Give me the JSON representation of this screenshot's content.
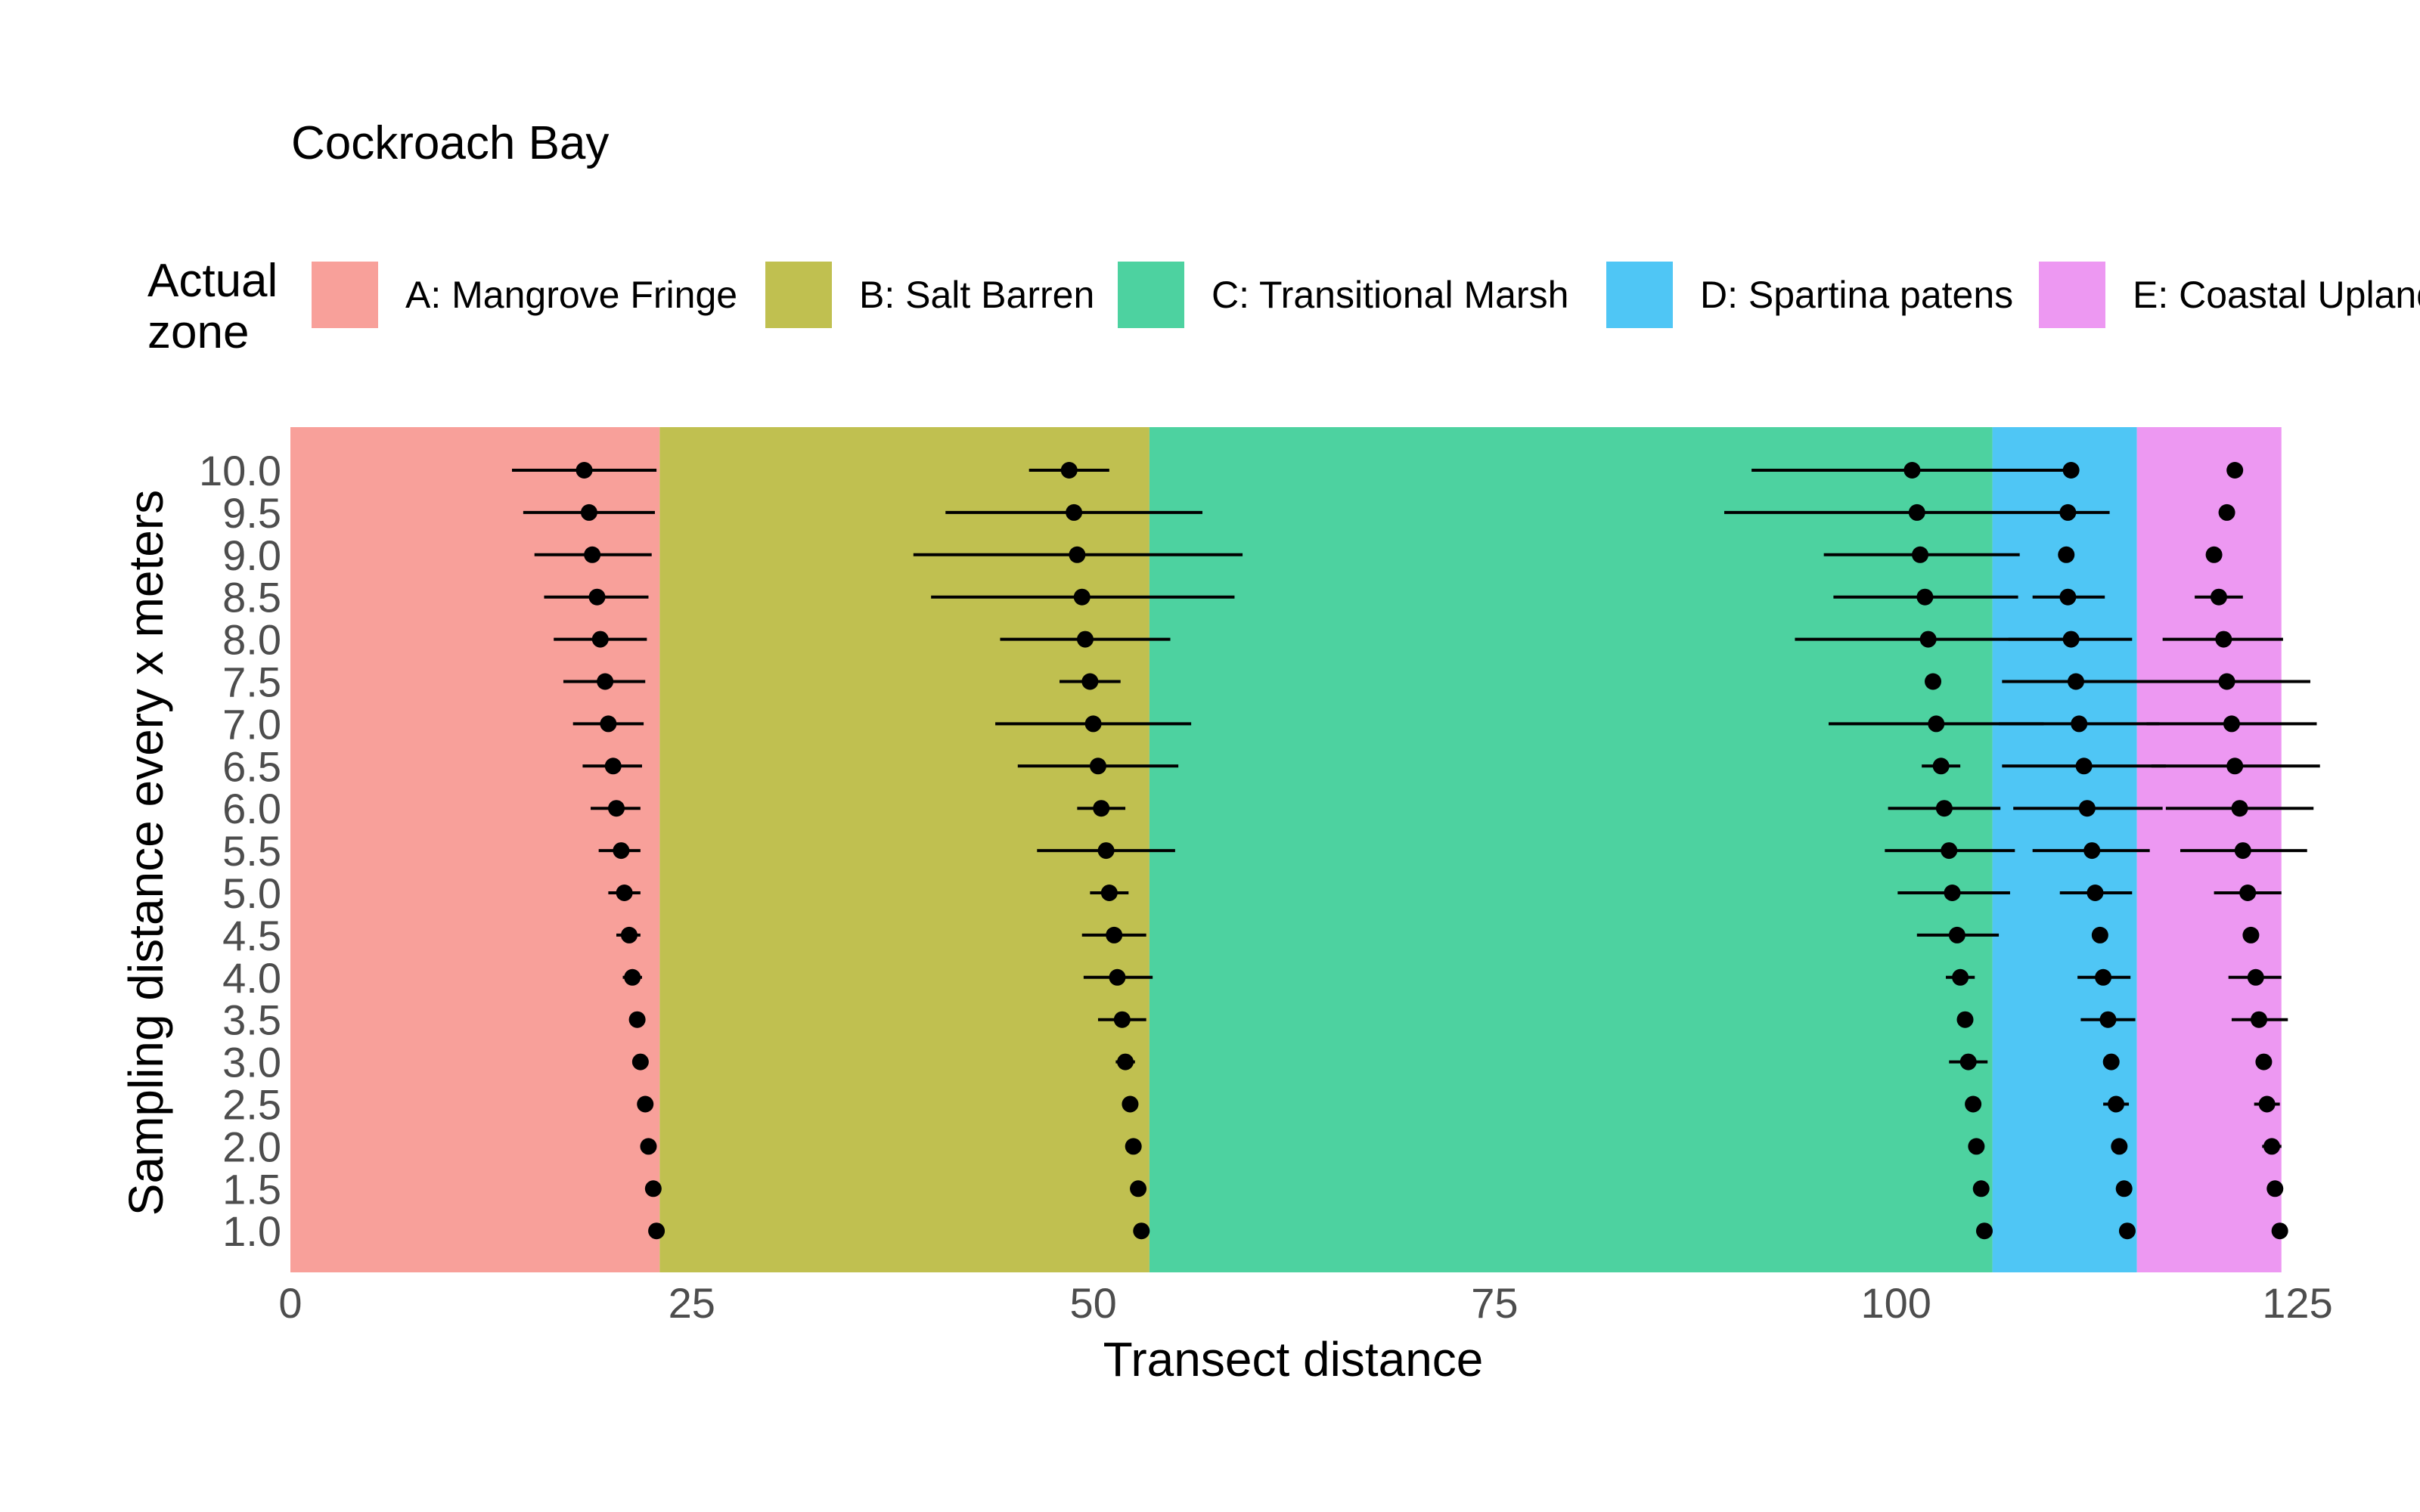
{
  "chart_data": {
    "type": "scatter",
    "title": "Cockroach Bay",
    "xlabel": "Transect distance",
    "ylabel": "Sampling distance every x meters",
    "xlim": [
      0,
      125
    ],
    "x_ticks": [
      "0",
      "25",
      "50",
      "75",
      "100",
      "125"
    ],
    "y_ticks": [
      "1.0",
      "1.5",
      "2.0",
      "2.5",
      "3.0",
      "3.5",
      "4.0",
      "4.5",
      "5.0",
      "5.5",
      "6.0",
      "6.5",
      "7.0",
      "7.5",
      "8.0",
      "8.5",
      "9.0",
      "9.5",
      "10.0"
    ],
    "grid": false,
    "legend": {
      "title": "Actual zone",
      "placement": "top",
      "entries": [
        {
          "name": "A: Mangrove Fringe",
          "color": "#F8A09A"
        },
        {
          "name": "B: Salt Barren",
          "color": "#C0C050"
        },
        {
          "name": "C: Transitional Marsh",
          "color": "#4DD2A0"
        },
        {
          "name": "D: Spartina patens",
          "color": "#4FC6F5"
        },
        {
          "name": "E: Coastal Upland",
          "color": "#ED98F2"
        }
      ]
    },
    "zones": [
      {
        "name": "A: Mangrove Fringe",
        "from": 0,
        "to": 23.0,
        "color": "#F8A09A"
      },
      {
        "name": "B: Salt Barren",
        "from": 23.0,
        "to": 53.5,
        "color": "#C0C050"
      },
      {
        "name": "C: Transitional Marsh",
        "from": 53.5,
        "to": 106.0,
        "color": "#4DD2A0"
      },
      {
        "name": "D: Spartina patens",
        "from": 106.0,
        "to": 115.0,
        "color": "#4FC6F5"
      },
      {
        "name": "E: Coastal Upland",
        "from": 115.0,
        "to": 124.0,
        "color": "#ED98F2"
      }
    ],
    "series": [
      {
        "boundary": "A-B",
        "points": [
          {
            "y": 10.0,
            "x": 18.3,
            "lo": 13.8,
            "hi": 22.8
          },
          {
            "y": 9.5,
            "x": 18.6,
            "lo": 14.5,
            "hi": 22.7
          },
          {
            "y": 9.0,
            "x": 18.8,
            "lo": 15.2,
            "hi": 22.5
          },
          {
            "y": 8.5,
            "x": 19.1,
            "lo": 15.8,
            "hi": 22.3
          },
          {
            "y": 8.0,
            "x": 19.3,
            "lo": 16.4,
            "hi": 22.2
          },
          {
            "y": 7.5,
            "x": 19.6,
            "lo": 17.0,
            "hi": 22.1
          },
          {
            "y": 7.0,
            "x": 19.8,
            "lo": 17.6,
            "hi": 22.0
          },
          {
            "y": 6.5,
            "x": 20.1,
            "lo": 18.2,
            "hi": 21.9
          },
          {
            "y": 6.0,
            "x": 20.3,
            "lo": 18.7,
            "hi": 21.8
          },
          {
            "y": 5.5,
            "x": 20.6,
            "lo": 19.2,
            "hi": 21.8
          },
          {
            "y": 5.0,
            "x": 20.8,
            "lo": 19.8,
            "hi": 21.8
          },
          {
            "y": 4.5,
            "x": 21.1,
            "lo": 20.3,
            "hi": 21.8
          },
          {
            "y": 4.0,
            "x": 21.3,
            "lo": 20.7,
            "hi": 21.9
          },
          {
            "y": 3.5,
            "x": 21.6,
            "lo": 21.1,
            "hi": 22.0
          },
          {
            "y": 3.0,
            "x": 21.8,
            "lo": 21.5,
            "hi": 22.1
          },
          {
            "y": 2.5,
            "x": 22.1,
            "lo": 21.8,
            "hi": 22.3
          },
          {
            "y": 2.0,
            "x": 22.3,
            "lo": 22.1,
            "hi": 22.5
          },
          {
            "y": 1.5,
            "x": 22.6,
            "lo": 22.4,
            "hi": 22.7
          },
          {
            "y": 1.0,
            "x": 22.8,
            "lo": 22.7,
            "hi": 22.9
          }
        ]
      },
      {
        "boundary": "B-C",
        "points": [
          {
            "y": 10.0,
            "x": 48.5,
            "lo": 46.0,
            "hi": 51.0
          },
          {
            "y": 9.5,
            "x": 48.8,
            "lo": 40.8,
            "hi": 56.8
          },
          {
            "y": 9.0,
            "x": 49.0,
            "lo": 38.8,
            "hi": 59.3
          },
          {
            "y": 8.5,
            "x": 49.3,
            "lo": 39.9,
            "hi": 58.8
          },
          {
            "y": 8.0,
            "x": 49.5,
            "lo": 44.2,
            "hi": 54.8
          },
          {
            "y": 7.5,
            "x": 49.8,
            "lo": 47.9,
            "hi": 51.7
          },
          {
            "y": 7.0,
            "x": 50.0,
            "lo": 43.9,
            "hi": 56.1
          },
          {
            "y": 6.5,
            "x": 50.3,
            "lo": 45.3,
            "hi": 55.3
          },
          {
            "y": 6.0,
            "x": 50.5,
            "lo": 49.0,
            "hi": 52.0
          },
          {
            "y": 5.5,
            "x": 50.8,
            "lo": 46.5,
            "hi": 55.1
          },
          {
            "y": 5.0,
            "x": 51.0,
            "lo": 49.8,
            "hi": 52.2
          },
          {
            "y": 4.5,
            "x": 51.3,
            "lo": 49.3,
            "hi": 53.3
          },
          {
            "y": 4.0,
            "x": 51.5,
            "lo": 49.4,
            "hi": 53.7
          },
          {
            "y": 3.5,
            "x": 51.8,
            "lo": 50.3,
            "hi": 53.3
          },
          {
            "y": 3.0,
            "x": 52.0,
            "lo": 51.4,
            "hi": 52.6
          },
          {
            "y": 2.5,
            "x": 52.3,
            "lo": 51.8,
            "hi": 52.8
          },
          {
            "y": 2.0,
            "x": 52.5,
            "lo": 52.3,
            "hi": 52.8
          },
          {
            "y": 1.5,
            "x": 52.8,
            "lo": 52.6,
            "hi": 52.9
          },
          {
            "y": 1.0,
            "x": 53.0,
            "lo": 52.9,
            "hi": 53.1
          }
        ]
      },
      {
        "boundary": "C-D",
        "points": [
          {
            "y": 10.0,
            "x": 101.0,
            "lo": 91.0,
            "hi": 111.0
          },
          {
            "y": 9.5,
            "x": 101.3,
            "lo": 89.3,
            "hi": 113.3
          },
          {
            "y": 9.0,
            "x": 101.5,
            "lo": 95.5,
            "hi": 107.7
          },
          {
            "y": 8.5,
            "x": 101.8,
            "lo": 96.1,
            "hi": 107.6
          },
          {
            "y": 8.0,
            "x": 102.0,
            "lo": 93.7,
            "hi": 110.4
          },
          {
            "y": 7.5,
            "x": 102.3,
            "lo": 102.0,
            "hi": 102.5
          },
          {
            "y": 7.0,
            "x": 102.5,
            "lo": 95.8,
            "hi": 109.2
          },
          {
            "y": 6.5,
            "x": 102.8,
            "lo": 101.6,
            "hi": 104.0
          },
          {
            "y": 6.0,
            "x": 103.0,
            "lo": 99.5,
            "hi": 106.5
          },
          {
            "y": 5.5,
            "x": 103.3,
            "lo": 99.3,
            "hi": 107.4
          },
          {
            "y": 5.0,
            "x": 103.5,
            "lo": 100.1,
            "hi": 107.1
          },
          {
            "y": 4.5,
            "x": 103.8,
            "lo": 101.3,
            "hi": 106.4
          },
          {
            "y": 4.0,
            "x": 104.0,
            "lo": 103.1,
            "hi": 104.9
          },
          {
            "y": 3.5,
            "x": 104.3,
            "lo": 104.2,
            "hi": 104.4
          },
          {
            "y": 3.0,
            "x": 104.5,
            "lo": 103.3,
            "hi": 105.7
          },
          {
            "y": 2.5,
            "x": 104.8,
            "lo": 104.7,
            "hi": 104.9
          },
          {
            "y": 2.0,
            "x": 105.0,
            "lo": 104.9,
            "hi": 105.1
          },
          {
            "y": 1.5,
            "x": 105.3,
            "lo": 105.2,
            "hi": 105.4
          },
          {
            "y": 1.0,
            "x": 105.5,
            "lo": 105.4,
            "hi": 105.6
          }
        ]
      },
      {
        "boundary": "D-E",
        "points": [
          {
            "y": 10.0,
            "x": 110.9,
            "lo": 110.9,
            "hi": 110.9
          },
          {
            "y": 9.5,
            "x": 110.7,
            "lo": 110.7,
            "hi": 110.7
          },
          {
            "y": 9.0,
            "x": 110.6,
            "lo": 110.6,
            "hi": 110.6
          },
          {
            "y": 8.5,
            "x": 110.7,
            "lo": 108.5,
            "hi": 113.0
          },
          {
            "y": 8.0,
            "x": 110.9,
            "lo": 107.0,
            "hi": 114.7
          },
          {
            "y": 7.5,
            "x": 111.2,
            "lo": 106.6,
            "hi": 115.8
          },
          {
            "y": 7.0,
            "x": 111.4,
            "lo": 106.4,
            "hi": 116.4
          },
          {
            "y": 6.5,
            "x": 111.7,
            "lo": 106.6,
            "hi": 116.8
          },
          {
            "y": 6.0,
            "x": 111.9,
            "lo": 107.3,
            "hi": 116.6
          },
          {
            "y": 5.5,
            "x": 112.2,
            "lo": 108.5,
            "hi": 115.8
          },
          {
            "y": 5.0,
            "x": 112.4,
            "lo": 110.2,
            "hi": 114.7
          },
          {
            "y": 4.5,
            "x": 112.7,
            "lo": 112.6,
            "hi": 112.8
          },
          {
            "y": 4.0,
            "x": 112.9,
            "lo": 111.3,
            "hi": 114.6
          },
          {
            "y": 3.5,
            "x": 113.2,
            "lo": 111.5,
            "hi": 114.9
          },
          {
            "y": 3.0,
            "x": 113.4,
            "lo": 113.3,
            "hi": 113.5
          },
          {
            "y": 2.5,
            "x": 113.7,
            "lo": 112.9,
            "hi": 114.5
          },
          {
            "y": 2.0,
            "x": 113.9,
            "lo": 113.4,
            "hi": 114.4
          },
          {
            "y": 1.5,
            "x": 114.2,
            "lo": 114.1,
            "hi": 114.3
          },
          {
            "y": 1.0,
            "x": 114.4,
            "lo": 114.3,
            "hi": 114.5
          }
        ]
      },
      {
        "boundary": "E-end",
        "points": [
          {
            "y": 10.0,
            "x": 121.1,
            "lo": 121.1,
            "hi": 121.1
          },
          {
            "y": 9.5,
            "x": 120.6,
            "lo": 120.6,
            "hi": 120.6
          },
          {
            "y": 9.0,
            "x": 119.8,
            "lo": 119.8,
            "hi": 119.8
          },
          {
            "y": 8.5,
            "x": 120.1,
            "lo": 118.6,
            "hi": 121.6
          },
          {
            "y": 8.0,
            "x": 120.4,
            "lo": 116.6,
            "hi": 124.1
          },
          {
            "y": 7.5,
            "x": 120.6,
            "lo": 115.4,
            "hi": 125.8
          },
          {
            "y": 7.0,
            "x": 120.9,
            "lo": 115.6,
            "hi": 126.2
          },
          {
            "y": 6.5,
            "x": 121.1,
            "lo": 115.9,
            "hi": 126.4
          },
          {
            "y": 6.0,
            "x": 121.4,
            "lo": 116.8,
            "hi": 126.0
          },
          {
            "y": 5.5,
            "x": 121.6,
            "lo": 117.7,
            "hi": 125.6
          },
          {
            "y": 5.0,
            "x": 121.9,
            "lo": 119.8,
            "hi": 124.0
          },
          {
            "y": 4.5,
            "x": 122.1,
            "lo": 122.0,
            "hi": 122.2
          },
          {
            "y": 4.0,
            "x": 122.4,
            "lo": 120.7,
            "hi": 124.0
          },
          {
            "y": 3.5,
            "x": 122.6,
            "lo": 120.9,
            "hi": 124.4
          },
          {
            "y": 3.0,
            "x": 122.9,
            "lo": 122.8,
            "hi": 123.0
          },
          {
            "y": 2.5,
            "x": 123.1,
            "lo": 122.3,
            "hi": 123.9
          },
          {
            "y": 2.0,
            "x": 123.4,
            "lo": 122.8,
            "hi": 124.0
          },
          {
            "y": 1.5,
            "x": 123.6,
            "lo": 123.5,
            "hi": 123.7
          },
          {
            "y": 1.0,
            "x": 123.9,
            "lo": 123.8,
            "hi": 124.0
          }
        ]
      }
    ]
  }
}
